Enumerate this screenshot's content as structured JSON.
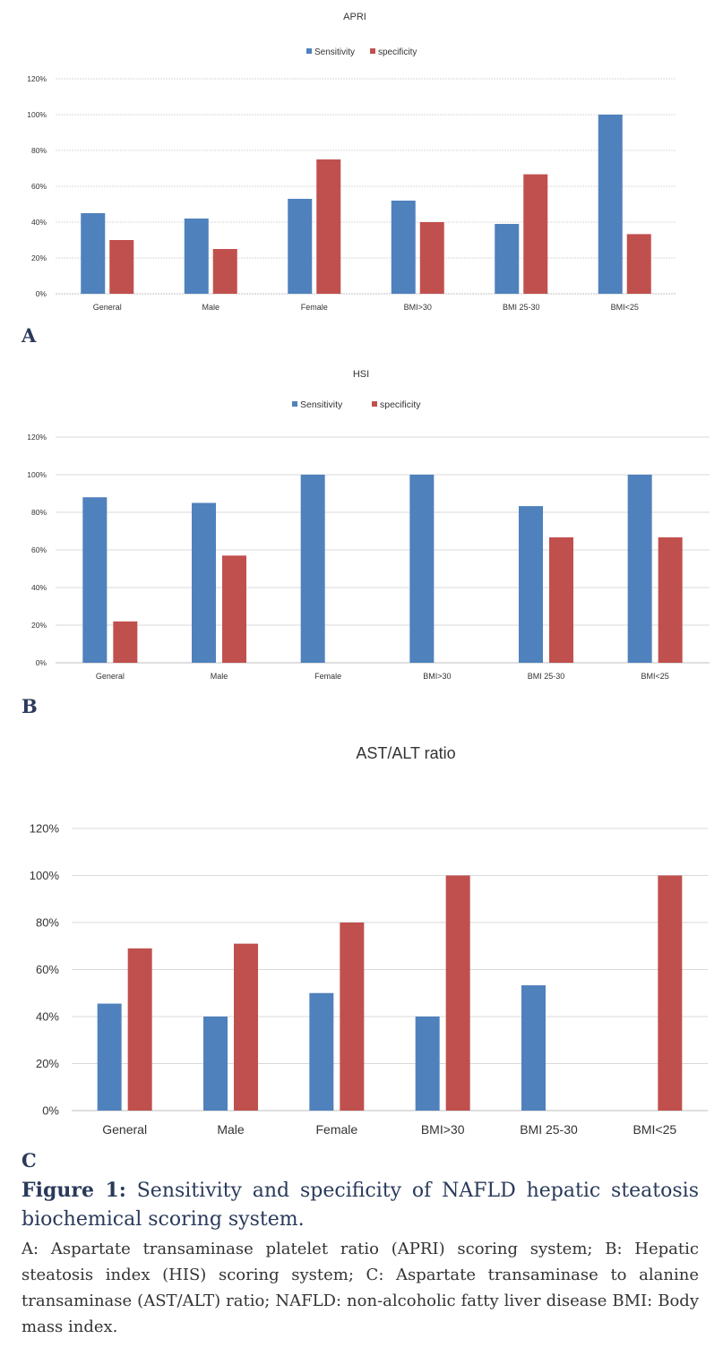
{
  "chart_data": [
    {
      "type": "bar",
      "title": "APRI",
      "categories": [
        "General",
        "Male",
        "Female",
        "BMI>30",
        "BMI 25-30",
        "BMI<25"
      ],
      "series": [
        {
          "name": "Sensitivity",
          "values": [
            45,
            42,
            53,
            52,
            39,
            100
          ]
        },
        {
          "name": "specificity",
          "values": [
            30,
            25,
            75,
            40,
            66.7,
            33.3
          ]
        }
      ],
      "ylim": [
        0,
        120
      ],
      "yticks": [
        "0%",
        "20%",
        "40%",
        "60%",
        "80%",
        "100%",
        "120%"
      ],
      "grid": true,
      "legend": "top"
    },
    {
      "type": "bar",
      "title": "HSI",
      "categories": [
        "General",
        "Male",
        "Female",
        "BMI>30",
        "BMI 25-30",
        "BMI<25"
      ],
      "series": [
        {
          "name": "Sensitivity",
          "values": [
            88,
            85,
            100,
            100,
            83.3,
            100
          ]
        },
        {
          "name": "specificity",
          "values": [
            22,
            57,
            0,
            0,
            66.7,
            66.7
          ]
        }
      ],
      "ylim": [
        0,
        120
      ],
      "yticks": [
        "0%",
        "20%",
        "40%",
        "60%",
        "80%",
        "100%",
        "120%"
      ],
      "grid": true,
      "legend": "top"
    },
    {
      "type": "bar",
      "title": "AST/ALT ratio",
      "categories": [
        "General",
        "Male",
        "Female",
        "BMI>30",
        "BMI 25-30",
        "BMI<25"
      ],
      "series": [
        {
          "values": [
            45.5,
            40,
            50,
            40,
            53.3,
            0
          ]
        },
        {
          "values": [
            69,
            71,
            80,
            100,
            0,
            100
          ]
        }
      ],
      "ylim": [
        0,
        120
      ],
      "yticks": [
        "0%",
        "20%",
        "40%",
        "60%",
        "80%",
        "100%",
        "120%"
      ],
      "grid": true,
      "legend": "none"
    }
  ],
  "colors": {
    "sensitivity": "#4f81bd",
    "specificity": "#c0504d",
    "grid": "#d9d9d9",
    "axis": "#bfbfbf"
  },
  "panels": {
    "a": "A",
    "b": "B",
    "c": "C"
  },
  "caption": {
    "title_label": "Figure 1:",
    "title_text": " Sensitivity and specificity of NAFLD hepatic steatosis biochemical scoring system.",
    "body": "A: Aspartate transaminase platelet ratio (APRI) scoring system; B: Hepatic steatosis index (HIS) scoring system; C: Aspartate transaminase to alanine transaminase (AST/ALT) ratio; NAFLD: non-alcoholic fatty liver disease BMI: Body mass index."
  }
}
